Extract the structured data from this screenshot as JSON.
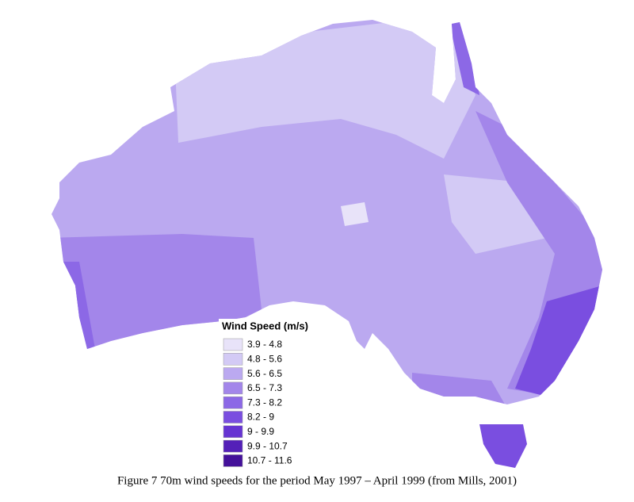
{
  "legend": {
    "title": "Wind Speed (m/s)",
    "items": [
      {
        "label": "3.9 - 4.8",
        "color": "#e8e3f9"
      },
      {
        "label": "4.8 - 5.6",
        "color": "#d3caf5"
      },
      {
        "label": "5.6 - 6.5",
        "color": "#bba9f0"
      },
      {
        "label": "6.5 - 7.3",
        "color": "#a386ea"
      },
      {
        "label": "7.3 - 8.2",
        "color": "#8c68e6"
      },
      {
        "label": "8.2 - 9",
        "color": "#7a4ee0"
      },
      {
        "label": "9 - 9.9",
        "color": "#6634d2"
      },
      {
        "label": "9.9 - 10.7",
        "color": "#5420b8"
      },
      {
        "label": "10.7 - 11.6",
        "color": "#44119a"
      }
    ]
  },
  "caption": "Figure 7 70m wind speeds for the period May 1997 – April 1999 (from Mills, 2001)"
}
